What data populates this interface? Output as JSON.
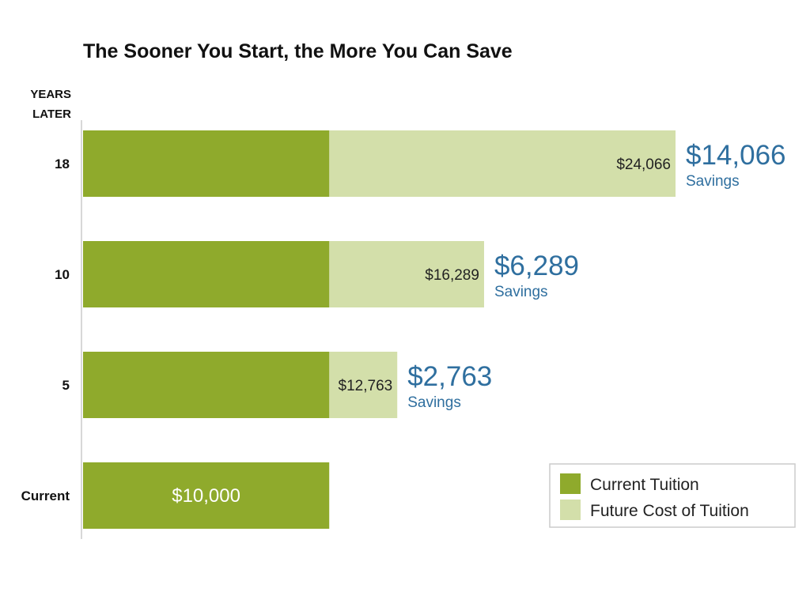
{
  "chart_data": {
    "type": "bar",
    "orientation": "horizontal",
    "title": "The Sooner You Start, the More You Can Save",
    "ylabel": "YEARS LATER",
    "ylabel_lines": [
      "YEARS",
      "LATER"
    ],
    "categories": [
      "18",
      "10",
      "5",
      "Current"
    ],
    "base_value": 10000,
    "series": [
      {
        "name": "Current Tuition",
        "color": "#8faa2c",
        "values": [
          10000,
          10000,
          10000,
          10000
        ]
      },
      {
        "name": "Future Cost of Tuition",
        "color": "#d3dfaa",
        "values": [
          24066,
          16289,
          12763,
          10000
        ]
      }
    ],
    "value_labels": [
      "$24,066",
      "$16,289",
      "$12,763",
      "$10,000"
    ],
    "savings": [
      {
        "amount": "$14,066",
        "label": "Savings"
      },
      {
        "amount": "$6,289",
        "label": "Savings"
      },
      {
        "amount": "$2,763",
        "label": "Savings"
      },
      null
    ],
    "xlim": [
      0,
      24066
    ],
    "legend_position": "bottom-right",
    "grid": false
  }
}
